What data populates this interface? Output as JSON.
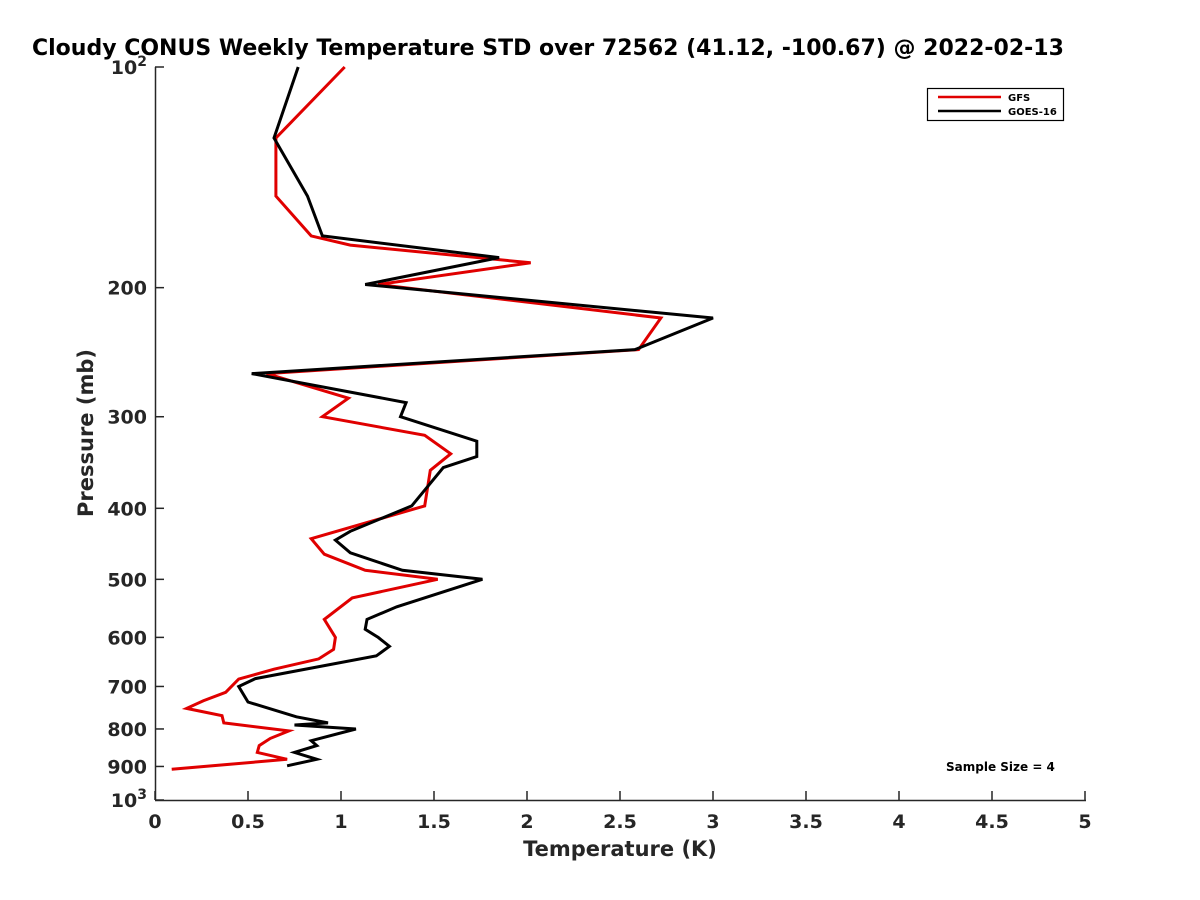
{
  "chart_data": {
    "type": "line",
    "title": "Cloudy CONUS Weekly Temperature STD over 72562 (41.12, -100.67) @ 2022-02-13",
    "xlabel": "Temperature (K)",
    "ylabel": "Pressure (mb)",
    "xlim": [
      0,
      5
    ],
    "ylim": [
      100,
      1000
    ],
    "y_scale": "log",
    "y_reversed": true,
    "x_ticks": [
      0,
      0.5,
      1,
      1.5,
      2,
      2.5,
      3,
      3.5,
      4,
      4.5,
      5
    ],
    "x_tick_labels": [
      "0",
      "0.5",
      "1",
      "1.5",
      "2",
      "2.5",
      "3",
      "3.5",
      "4",
      "4.5",
      "5"
    ],
    "y_ticks": [
      100,
      200,
      300,
      400,
      500,
      600,
      700,
      800,
      900,
      1000
    ],
    "y_tick_labels": [
      {
        "base": "10",
        "exp": "2"
      },
      {
        "base": "200",
        "exp": ""
      },
      {
        "base": "300",
        "exp": ""
      },
      {
        "base": "400",
        "exp": ""
      },
      {
        "base": "500",
        "exp": ""
      },
      {
        "base": "600",
        "exp": ""
      },
      {
        "base": "700",
        "exp": ""
      },
      {
        "base": "800",
        "exp": ""
      },
      {
        "base": "900",
        "exp": ""
      },
      {
        "base": "10",
        "exp": "3"
      }
    ],
    "grid": false,
    "legend_position": "top-right",
    "annotation": "Sample Size = 4",
    "series": [
      {
        "name": "GFS",
        "color": "#e00000",
        "points": [
          [
            1.02,
            100
          ],
          [
            0.65,
            125
          ],
          [
            0.65,
            150
          ],
          [
            0.84,
            170
          ],
          [
            1.05,
            175
          ],
          [
            2.02,
            185
          ],
          [
            1.2,
            198
          ],
          [
            2.72,
            220
          ],
          [
            2.6,
            243
          ],
          [
            0.6,
            262
          ],
          [
            1.04,
            283
          ],
          [
            0.9,
            300
          ],
          [
            1.45,
            318
          ],
          [
            1.59,
            337
          ],
          [
            1.48,
            355
          ],
          [
            1.45,
            397
          ],
          [
            0.84,
            440
          ],
          [
            0.91,
            462
          ],
          [
            1.13,
            486
          ],
          [
            1.52,
            500
          ],
          [
            1.06,
            530
          ],
          [
            0.91,
            567
          ],
          [
            0.97,
            600
          ],
          [
            0.96,
            623
          ],
          [
            0.88,
            642
          ],
          [
            0.64,
            663
          ],
          [
            0.45,
            684
          ],
          [
            0.38,
            713
          ],
          [
            0.26,
            732
          ],
          [
            0.17,
            750
          ],
          [
            0.36,
            767
          ],
          [
            0.37,
            785
          ],
          [
            0.72,
            805
          ],
          [
            0.62,
            824
          ],
          [
            0.56,
            843
          ],
          [
            0.55,
            861
          ],
          [
            0.71,
            880
          ],
          [
            0.09,
            908
          ]
        ]
      },
      {
        "name": "GOES-16",
        "color": "#000000",
        "points": [
          [
            0.77,
            100
          ],
          [
            0.64,
            125
          ],
          [
            0.82,
            150
          ],
          [
            0.9,
            170
          ],
          [
            1.85,
            182
          ],
          [
            1.13,
            198
          ],
          [
            3.0,
            220
          ],
          [
            2.58,
            243
          ],
          [
            0.52,
            262
          ],
          [
            1.35,
            287
          ],
          [
            1.32,
            300
          ],
          [
            1.73,
            324
          ],
          [
            1.73,
            340
          ],
          [
            1.55,
            352
          ],
          [
            1.38,
            397
          ],
          [
            1.05,
            430
          ],
          [
            0.97,
            442
          ],
          [
            1.05,
            460
          ],
          [
            1.33,
            486
          ],
          [
            1.76,
            500
          ],
          [
            1.3,
            545
          ],
          [
            1.14,
            567
          ],
          [
            1.13,
            585
          ],
          [
            1.2,
            600
          ],
          [
            1.26,
            617
          ],
          [
            1.19,
            636
          ],
          [
            0.54,
            683
          ],
          [
            0.45,
            700
          ],
          [
            0.5,
            735
          ],
          [
            0.76,
            770
          ],
          [
            0.93,
            785
          ],
          [
            0.75,
            790
          ],
          [
            1.08,
            800
          ],
          [
            0.84,
            830
          ],
          [
            0.87,
            843
          ],
          [
            0.75,
            861
          ],
          [
            0.87,
            880
          ],
          [
            0.71,
            898
          ]
        ]
      }
    ]
  }
}
